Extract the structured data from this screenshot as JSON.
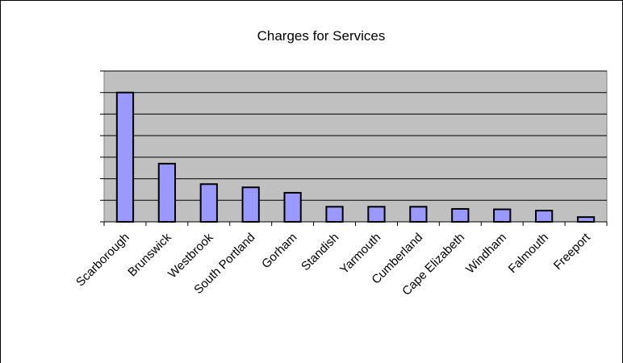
{
  "chart_data": {
    "type": "bar",
    "title": "Charges for Services",
    "categories": [
      "Scarborough",
      "Brunswick",
      "Westbrook",
      "South Portland",
      "Gorham",
      "Standish",
      "Yarmouth",
      "Cumberland",
      "Cape Elizabeth",
      "Windham",
      "Falmouth",
      "Freeport"
    ],
    "values": [
      6.0,
      2.7,
      1.75,
      1.6,
      1.35,
      0.7,
      0.7,
      0.7,
      0.6,
      0.58,
      0.52,
      0.22
    ],
    "ylim": [
      0,
      7
    ],
    "grid": true,
    "legend": "none",
    "colors": {
      "bar_fill": "#9999ff",
      "bar_stroke": "#000000",
      "plot_background": "#c0c0c0",
      "grid_line": "#000000"
    }
  }
}
